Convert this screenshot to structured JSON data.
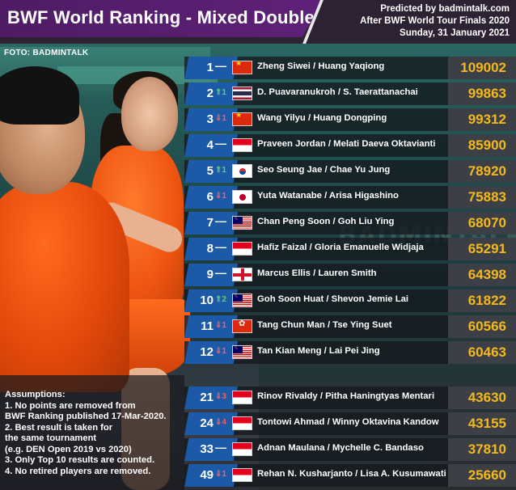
{
  "header": {
    "title": "BWF World Ranking - Mixed Doubles",
    "predicted_by": "Predicted by badmintalk.com",
    "after": "After BWF World Tour Finals 2020",
    "date": "Sunday, 31 January 2021"
  },
  "photo_credit": "FOTO: BADMINTALK",
  "watermark": "BADMINTALK",
  "colors": {
    "title_bg": "#5e2078",
    "rank_box": "#1c5aa8",
    "points_text": "#f3b81c",
    "up": "#5fd36a",
    "down": "#ff5a5a"
  },
  "rankings": [
    {
      "rank": "1",
      "change": "—",
      "dir": "same",
      "flag": "china-flag",
      "names": "Zheng Siwei / Huang Yaqiong",
      "points": "109002"
    },
    {
      "rank": "2",
      "change": "⇑1",
      "dir": "up",
      "flag": "thailand-flag",
      "names": "D. Puavaranukroh / S. Taerattanachai",
      "points": "99863"
    },
    {
      "rank": "3",
      "change": "⇓1",
      "dir": "down",
      "flag": "china-flag",
      "names": "Wang Yilyu / Huang Dongping",
      "points": "99312"
    },
    {
      "rank": "4",
      "change": "—",
      "dir": "same",
      "flag": "indonesia-flag",
      "names": "Praveen Jordan / Melati Daeva Oktavianti",
      "points": "85900"
    },
    {
      "rank": "5",
      "change": "⇑1",
      "dir": "up",
      "flag": "korea-flag",
      "names": "Seo Seung Jae / Chae Yu Jung",
      "points": "78920"
    },
    {
      "rank": "6",
      "change": "⇓1",
      "dir": "down",
      "flag": "japan-flag",
      "names": "Yuta Watanabe / Arisa Higashino",
      "points": "75883"
    },
    {
      "rank": "7",
      "change": "—",
      "dir": "same",
      "flag": "malaysia-flag",
      "names": "Chan Peng Soon / Goh Liu Ying",
      "points": "68070"
    },
    {
      "rank": "8",
      "change": "—",
      "dir": "same",
      "flag": "indonesia-flag",
      "names": "Hafiz Faizal / Gloria Emanuelle Widjaja",
      "points": "65291"
    },
    {
      "rank": "9",
      "change": "—",
      "dir": "same",
      "flag": "england-flag",
      "names": "Marcus Ellis / Lauren Smith",
      "points": "64398"
    },
    {
      "rank": "10",
      "change": "⇑2",
      "dir": "up",
      "flag": "malaysia-flag",
      "names": "Goh Soon Huat / Shevon Jemie Lai",
      "points": "61822"
    },
    {
      "rank": "11",
      "change": "⇓1",
      "dir": "down",
      "flag": "hongkong-flag",
      "names": "Tang Chun Man / Tse Ying Suet",
      "points": "60566"
    },
    {
      "rank": "12",
      "change": "⇓1",
      "dir": "down",
      "flag": "malaysia-flag",
      "names": "Tan Kian Meng / Lai Pei Jing",
      "points": "60463"
    },
    {
      "rank": "21",
      "change": "⇓3",
      "dir": "down",
      "flag": "indonesia-flag",
      "names": "Rinov Rivaldy / Pitha Haningtyas Mentari",
      "points": "43630"
    },
    {
      "rank": "24",
      "change": "⇓4",
      "dir": "down",
      "flag": "indonesia-flag",
      "names": "Tontowi Ahmad / Winny Oktavina Kandow",
      "points": "43155"
    },
    {
      "rank": "33",
      "change": "—",
      "dir": "same",
      "flag": "indonesia-flag",
      "names": "Adnan Maulana / Mychelle C. Bandaso",
      "points": "37810"
    },
    {
      "rank": "49",
      "change": "⇓1",
      "dir": "down",
      "flag": "indonesia-flag",
      "names": "Rehan N. Kusharjanto / Lisa A. Kusumawati",
      "points": "25660"
    }
  ],
  "assumptions": {
    "title": "Assumptions:",
    "lines": [
      "1. No points are removed from",
      "    BWF Ranking published 17-Mar-2020.",
      "2. Best result is taken for",
      "    the same tournament",
      "    (e.g. DEN Open 2019 vs 2020)",
      "3. Only Top 10 results are counted.",
      "4. No retired players are removed."
    ]
  }
}
